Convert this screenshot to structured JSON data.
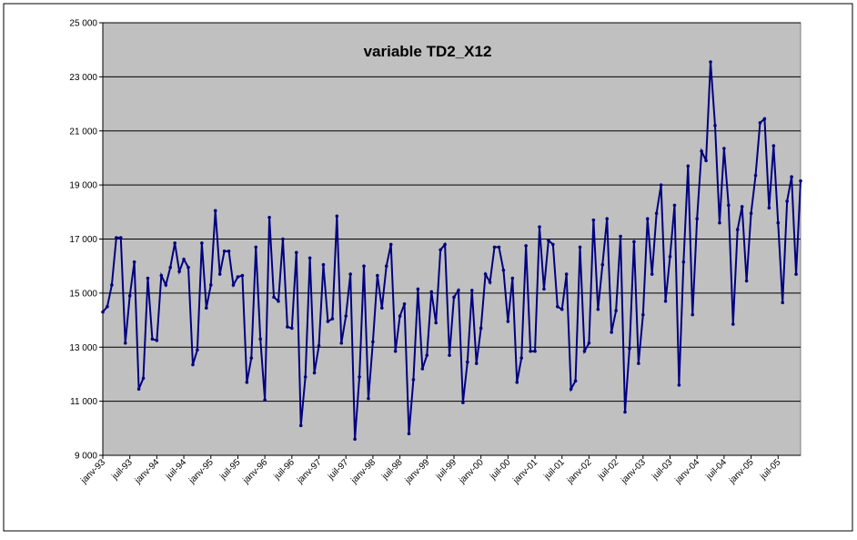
{
  "chart_data": {
    "type": "line",
    "title": "variable TD2_X12",
    "categories": [
      "janv-93",
      null,
      null,
      null,
      null,
      null,
      "juil-93",
      null,
      null,
      null,
      null,
      null,
      "janv-94",
      null,
      null,
      null,
      null,
      null,
      "juil-94",
      null,
      null,
      null,
      null,
      null,
      "janv-95",
      null,
      null,
      null,
      null,
      null,
      "juil-95",
      null,
      null,
      null,
      null,
      null,
      "janv-96",
      null,
      null,
      null,
      null,
      null,
      "juil-96",
      null,
      null,
      null,
      null,
      null,
      "janv-97",
      null,
      null,
      null,
      null,
      null,
      "juil-97",
      null,
      null,
      null,
      null,
      null,
      "janv-98",
      null,
      null,
      null,
      null,
      null,
      "juil-98",
      null,
      null,
      null,
      null,
      null,
      "janv-99",
      null,
      null,
      null,
      null,
      null,
      "juil-99",
      null,
      null,
      null,
      null,
      null,
      "janv-00",
      null,
      null,
      null,
      null,
      null,
      "juil-00",
      null,
      null,
      null,
      null,
      null,
      "janv-01",
      null,
      null,
      null,
      null,
      null,
      "juil-01",
      null,
      null,
      null,
      null,
      null,
      "janv-02",
      null,
      null,
      null,
      null,
      null,
      "juil-02",
      null,
      null,
      null,
      null,
      null,
      "janv-03",
      null,
      null,
      null,
      null,
      null,
      "juil-03",
      null,
      null,
      null,
      null,
      null,
      "janv-04",
      null,
      null,
      null,
      null,
      null,
      "juil-04",
      null,
      null,
      null,
      null,
      null,
      "janv-05",
      null,
      null,
      null,
      null,
      null,
      "juil-05",
      null,
      null,
      null,
      null,
      null
    ],
    "values": [
      14300,
      14500,
      15300,
      17050,
      17050,
      13150,
      14900,
      16150,
      11450,
      11850,
      15550,
      13300,
      13250,
      15650,
      15300,
      15950,
      16850,
      15800,
      16250,
      15950,
      12350,
      12900,
      16850,
      14450,
      15300,
      18050,
      15700,
      16550,
      16550,
      15300,
      15600,
      15650,
      11700,
      12600,
      16700,
      13300,
      11050,
      17800,
      14850,
      14700,
      17000,
      13750,
      13700,
      16500,
      10100,
      11900,
      16300,
      12050,
      13050,
      16050,
      13950,
      14050,
      17850,
      13150,
      14150,
      15700,
      9600,
      11900,
      16000,
      11100,
      13200,
      15650,
      14450,
      16000,
      16800,
      12850,
      14150,
      14600,
      9800,
      11800,
      15150,
      12200,
      12700,
      15050,
      13900,
      16600,
      16800,
      12700,
      14850,
      15100,
      10950,
      12450,
      15100,
      12400,
      13700,
      15700,
      15400,
      16700,
      16700,
      15850,
      13950,
      15550,
      11700,
      12600,
      16750,
      12850,
      12850,
      17450,
      15150,
      16950,
      16800,
      14500,
      14400,
      15700,
      11450,
      11750,
      16700,
      12850,
      13150,
      17700,
      14400,
      16050,
      17750,
      13550,
      14350,
      17100,
      10600,
      12950,
      16900,
      12400,
      14200,
      17750,
      15700,
      17950,
      19000,
      14700,
      16350,
      18250,
      11600,
      16150,
      19700,
      14200,
      17750,
      20250,
      19900,
      23550,
      21200,
      17600,
      20350,
      18250,
      13850,
      17350,
      18200,
      15450,
      17950,
      19350,
      21300,
      21450,
      18150,
      20450,
      17600,
      14650,
      18400,
      19300,
      15700,
      19150
    ],
    "color": "#000080",
    "ylim": [
      9000,
      25000
    ],
    "yticks": [
      {
        "value": 9000,
        "label": "9 000"
      },
      {
        "value": 11000,
        "label": "11 000"
      },
      {
        "value": 13000,
        "label": "13 000"
      },
      {
        "value": 15000,
        "label": "15 000"
      },
      {
        "value": 17000,
        "label": "17 000"
      },
      {
        "value": 19000,
        "label": "19 000"
      },
      {
        "value": 21000,
        "label": "21 000"
      },
      {
        "value": 23000,
        "label": "23 000"
      },
      {
        "value": 25000,
        "label": "25 000"
      }
    ],
    "grid": true
  }
}
